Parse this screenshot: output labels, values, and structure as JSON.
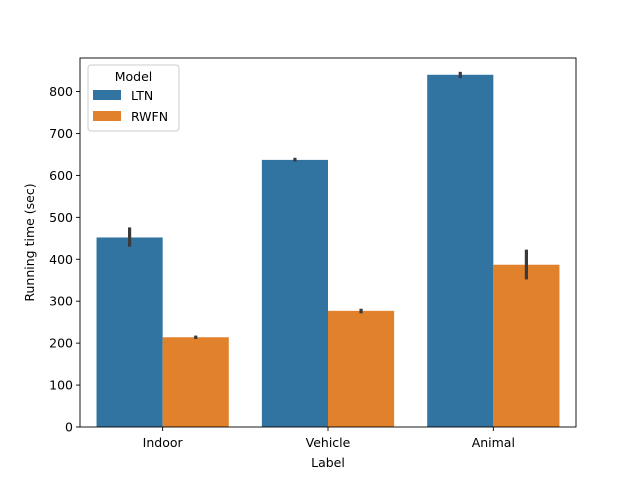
{
  "chart_data": {
    "type": "bar",
    "xlabel": "Label",
    "ylabel": "Running time (sec)",
    "categories": [
      "Indoor",
      "Vehicle",
      "Animal"
    ],
    "ylim": [
      0,
      880
    ],
    "yticks": [
      0,
      100,
      200,
      300,
      400,
      500,
      600,
      700,
      800
    ],
    "legend": {
      "title": "Model",
      "placement": "upper-left"
    },
    "series": [
      {
        "name": "LTN",
        "color": "#3274a1",
        "values": [
          452,
          637,
          840
        ],
        "error_low": [
          430,
          633,
          832
        ],
        "error_high": [
          476,
          642,
          847
        ]
      },
      {
        "name": "RWFN",
        "color": "#e1812c",
        "values": [
          214,
          277,
          387
        ],
        "error_low": [
          210,
          271,
          352
        ],
        "error_high": [
          218,
          282,
          423
        ]
      }
    ],
    "errorbar_color": "#3a3a3a",
    "grid": false
  }
}
